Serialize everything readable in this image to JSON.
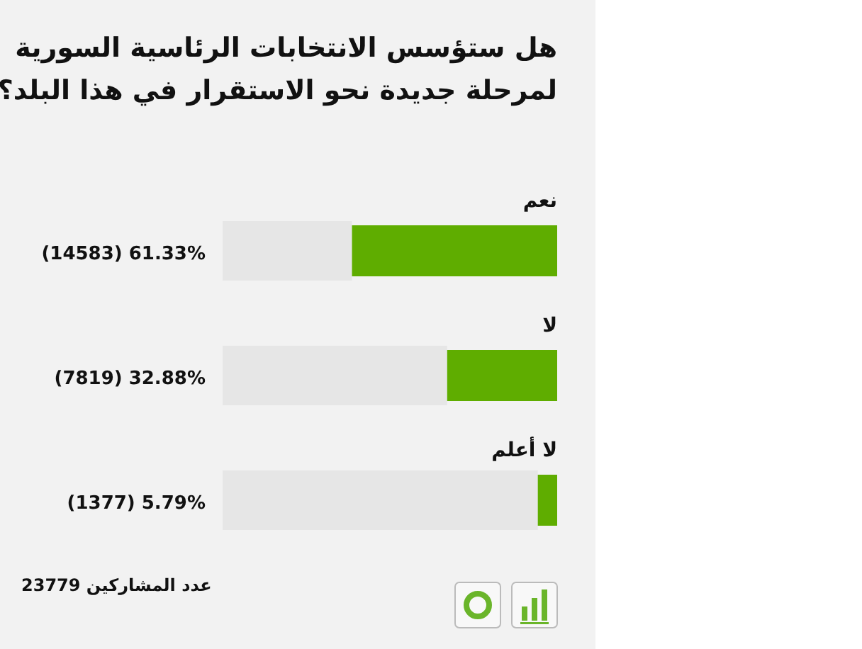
{
  "chart_data": {
    "type": "bar",
    "orientation": "horizontal",
    "title": "هل ستؤسس الانتخابات الرئاسية السورية لمرحلة جديدة نحو الاستقرار في هذا البلد؟",
    "categories": [
      "نعم",
      "لا",
      "لا أعلم"
    ],
    "values": [
      61.33,
      32.88,
      5.79
    ],
    "value_labels": [
      "(14583) 61.33%",
      "(7819) 32.88%",
      "(1377) 5.79%"
    ],
    "color": "#5fad00",
    "xlim": [
      100,
      0
    ],
    "annotations": [
      "عدد المشاركين 23779"
    ]
  }
}
